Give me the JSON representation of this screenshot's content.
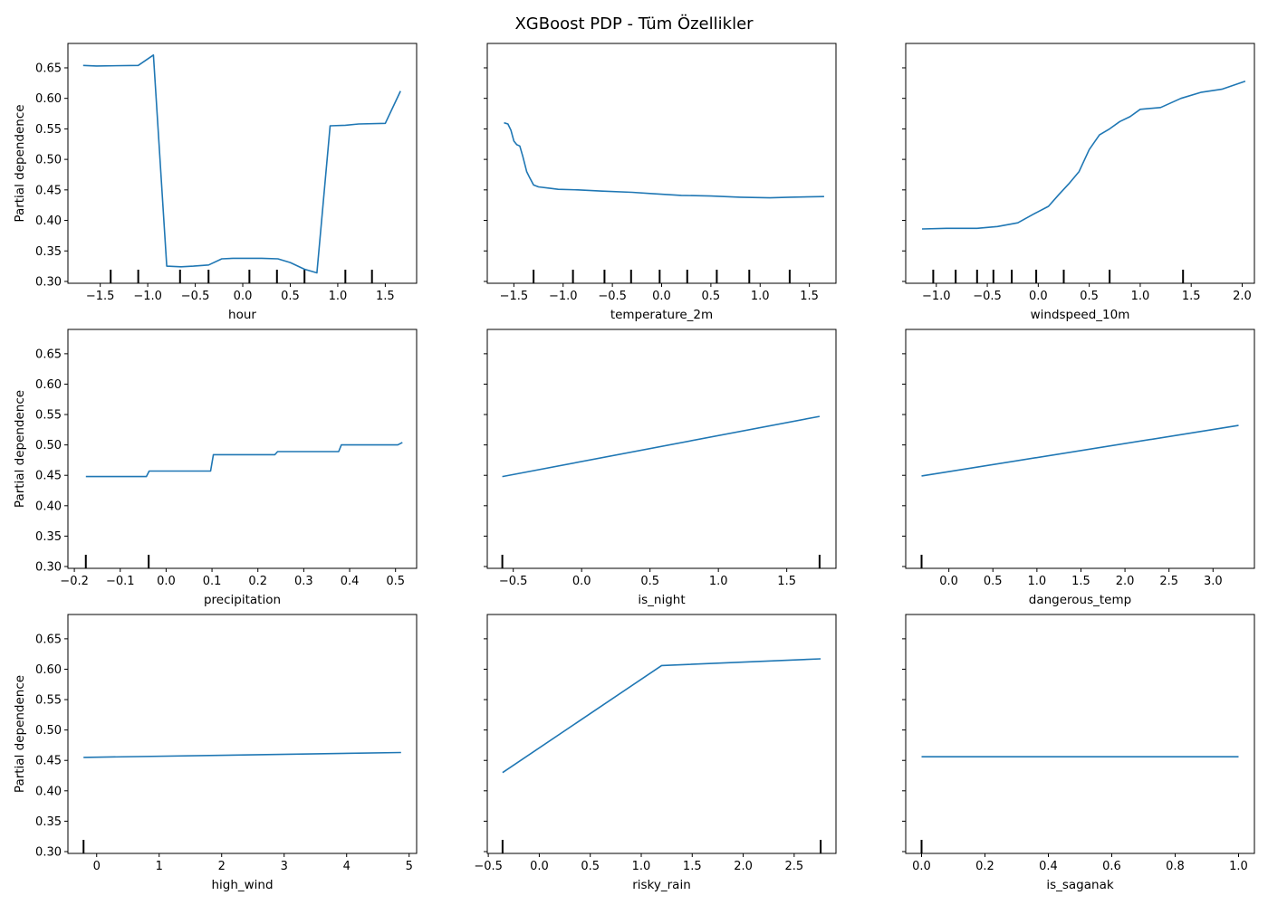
{
  "figure": {
    "title": "XGBoost PDP - Tüm Özellikler",
    "line_color": "#1f77b4",
    "ylabel": "Partial dependence"
  },
  "chart_data": [
    {
      "type": "line",
      "xlabel": "hour",
      "ylabel": "Partial dependence",
      "xlim": [
        -1.84,
        1.83
      ],
      "ylim": [
        0.297,
        0.69
      ],
      "xticks": [
        -1.5,
        -1.0,
        -0.5,
        0.0,
        0.5,
        1.0,
        1.5
      ],
      "xtick_labels": [
        "−1.5",
        "−1.0",
        "−0.5",
        "0.0",
        "0.5",
        "1.0",
        "1.5"
      ],
      "yticks": [
        0.3,
        0.35,
        0.4,
        0.45,
        0.5,
        0.55,
        0.6,
        0.65
      ],
      "ytick_labels": [
        "0.30",
        "0.35",
        "0.40",
        "0.45",
        "0.50",
        "0.55",
        "0.60",
        "0.65"
      ],
      "show_yticklabels": true,
      "x": [
        -1.68,
        -1.54,
        -1.1,
        -0.94,
        -0.8,
        -0.65,
        -0.52,
        -0.36,
        -0.22,
        -0.1,
        0.05,
        0.2,
        0.37,
        0.5,
        0.65,
        0.78,
        0.92,
        1.08,
        1.22,
        1.5,
        1.66
      ],
      "y": [
        0.654,
        0.653,
        0.654,
        0.671,
        0.325,
        0.324,
        0.325,
        0.327,
        0.337,
        0.338,
        0.338,
        0.338,
        0.337,
        0.331,
        0.32,
        0.314,
        0.555,
        0.556,
        0.558,
        0.559,
        0.612
      ],
      "deciles": [
        -1.39,
        -1.1,
        -0.66,
        -0.36,
        0.07,
        0.36,
        0.65,
        1.08,
        1.36
      ]
    },
    {
      "type": "line",
      "xlabel": "temperature_2m",
      "ylabel": "",
      "xlim": [
        -1.77,
        1.77
      ],
      "ylim": [
        0.297,
        0.69
      ],
      "xticks": [
        -1.5,
        -1.0,
        -0.5,
        0.0,
        0.5,
        1.0,
        1.5
      ],
      "xtick_labels": [
        "−1.5",
        "−1.0",
        "−0.5",
        "0.0",
        "0.5",
        "1.0",
        "1.5"
      ],
      "yticks": [
        0.3,
        0.35,
        0.4,
        0.45,
        0.5,
        0.55,
        0.6,
        0.65
      ],
      "ytick_labels": [
        "0.30",
        "0.35",
        "0.40",
        "0.45",
        "0.50",
        "0.55",
        "0.60",
        "0.65"
      ],
      "show_yticklabels": false,
      "x": [
        -1.6,
        -1.56,
        -1.53,
        -1.5,
        -1.47,
        -1.44,
        -1.41,
        -1.37,
        -1.34,
        -1.3,
        -1.25,
        -1.15,
        -1.05,
        -0.85,
        -0.6,
        -0.3,
        -0.1,
        0.2,
        0.5,
        0.8,
        1.1,
        1.3,
        1.65
      ],
      "y": [
        0.56,
        0.558,
        0.548,
        0.53,
        0.524,
        0.522,
        0.505,
        0.48,
        0.47,
        0.458,
        0.455,
        0.453,
        0.451,
        0.45,
        0.448,
        0.446,
        0.444,
        0.441,
        0.44,
        0.438,
        0.437,
        0.438,
        0.439
      ],
      "deciles": [
        -1.3,
        -0.9,
        -0.58,
        -0.31,
        -0.02,
        0.26,
        0.56,
        0.89,
        1.3
      ]
    },
    {
      "type": "line",
      "xlabel": "windspeed_10m",
      "ylabel": "",
      "xlim": [
        -1.3,
        2.12
      ],
      "ylim": [
        0.297,
        0.69
      ],
      "xticks": [
        -1.0,
        -0.5,
        0.0,
        0.5,
        1.0,
        1.5,
        2.0
      ],
      "xtick_labels": [
        "−1.0",
        "−0.5",
        "0.0",
        "0.5",
        "1.0",
        "1.5",
        "2.0"
      ],
      "yticks": [
        0.3,
        0.35,
        0.4,
        0.45,
        0.5,
        0.55,
        0.6,
        0.65
      ],
      "ytick_labels": [
        "0.30",
        "0.35",
        "0.40",
        "0.45",
        "0.50",
        "0.55",
        "0.60",
        "0.65"
      ],
      "show_yticklabels": false,
      "x": [
        -1.14,
        -0.9,
        -0.6,
        -0.4,
        -0.2,
        -0.05,
        0.1,
        0.2,
        0.3,
        0.4,
        0.5,
        0.6,
        0.7,
        0.8,
        0.9,
        1.0,
        1.2,
        1.4,
        1.6,
        1.8,
        2.03
      ],
      "y": [
        0.386,
        0.387,
        0.387,
        0.39,
        0.396,
        0.41,
        0.423,
        0.442,
        0.46,
        0.48,
        0.516,
        0.54,
        0.55,
        0.562,
        0.57,
        0.582,
        0.585,
        0.6,
        0.61,
        0.615,
        0.628
      ],
      "deciles": [
        -1.03,
        -0.81,
        -0.6,
        -0.44,
        -0.26,
        -0.02,
        0.25,
        0.7,
        1.42
      ]
    },
    {
      "type": "line",
      "xlabel": "precipitation",
      "ylabel": "Partial dependence",
      "xlim": [
        -0.214,
        0.546
      ],
      "ylim": [
        0.297,
        0.69
      ],
      "xticks": [
        -0.2,
        -0.1,
        0.0,
        0.1,
        0.2,
        0.3,
        0.4,
        0.5
      ],
      "xtick_labels": [
        "−0.2",
        "−0.1",
        "0.0",
        "0.1",
        "0.2",
        "0.3",
        "0.4",
        "0.5"
      ],
      "yticks": [
        0.3,
        0.35,
        0.4,
        0.45,
        0.5,
        0.55,
        0.6,
        0.65
      ],
      "ytick_labels": [
        "0.30",
        "0.35",
        "0.40",
        "0.45",
        "0.50",
        "0.55",
        "0.60",
        "0.65"
      ],
      "show_yticklabels": true,
      "x": [
        -0.175,
        -0.043,
        -0.037,
        0.097,
        0.103,
        0.237,
        0.243,
        0.376,
        0.382,
        0.505,
        0.515
      ],
      "y": [
        0.448,
        0.448,
        0.457,
        0.457,
        0.484,
        0.484,
        0.489,
        0.489,
        0.5,
        0.5,
        0.504
      ],
      "deciles": [
        -0.175,
        -0.038
      ]
    },
    {
      "type": "line",
      "xlabel": "is_night",
      "ylabel": "",
      "xlim": [
        -0.69,
        1.86
      ],
      "ylim": [
        0.297,
        0.69
      ],
      "xticks": [
        -0.5,
        0.0,
        0.5,
        1.0,
        1.5
      ],
      "xtick_labels": [
        "−0.5",
        "0.0",
        "0.5",
        "1.0",
        "1.5"
      ],
      "yticks": [
        0.3,
        0.35,
        0.4,
        0.45,
        0.5,
        0.55,
        0.6,
        0.65
      ],
      "ytick_labels": [
        "0.30",
        "0.35",
        "0.40",
        "0.45",
        "0.50",
        "0.55",
        "0.60",
        "0.65"
      ],
      "show_yticklabels": false,
      "x": [
        -0.58,
        1.74
      ],
      "y": [
        0.448,
        0.547
      ],
      "deciles": [
        -0.58,
        1.74
      ]
    },
    {
      "type": "line",
      "xlabel": "dangerous_temp",
      "ylabel": "",
      "xlim": [
        -0.49,
        3.47
      ],
      "ylim": [
        0.297,
        0.69
      ],
      "xticks": [
        0.0,
        0.5,
        1.0,
        1.5,
        2.0,
        2.5,
        3.0
      ],
      "xtick_labels": [
        "0.0",
        "0.5",
        "1.0",
        "1.5",
        "2.0",
        "2.5",
        "3.0"
      ],
      "yticks": [
        0.3,
        0.35,
        0.4,
        0.45,
        0.5,
        0.55,
        0.6,
        0.65
      ],
      "ytick_labels": [
        "0.30",
        "0.35",
        "0.40",
        "0.45",
        "0.50",
        "0.55",
        "0.60",
        "0.65"
      ],
      "show_yticklabels": false,
      "x": [
        -0.31,
        3.29
      ],
      "y": [
        0.449,
        0.532
      ],
      "deciles": [
        -0.31
      ]
    },
    {
      "type": "line",
      "xlabel": "high_wind",
      "ylabel": "Partial dependence",
      "xlim": [
        -0.46,
        5.12
      ],
      "ylim": [
        0.297,
        0.69
      ],
      "xticks": [
        0,
        1,
        2,
        3,
        4,
        5
      ],
      "xtick_labels": [
        "0",
        "1",
        "2",
        "3",
        "4",
        "5"
      ],
      "yticks": [
        0.3,
        0.35,
        0.4,
        0.45,
        0.5,
        0.55,
        0.6,
        0.65
      ],
      "ytick_labels": [
        "0.30",
        "0.35",
        "0.40",
        "0.45",
        "0.50",
        "0.55",
        "0.60",
        "0.65"
      ],
      "show_yticklabels": true,
      "x": [
        -0.21,
        4.87
      ],
      "y": [
        0.455,
        0.463
      ],
      "deciles": [
        -0.21
      ]
    },
    {
      "type": "line",
      "xlabel": "risky_rain",
      "ylabel": "",
      "xlim": [
        -0.51,
        2.91
      ],
      "ylim": [
        0.297,
        0.69
      ],
      "xticks": [
        -0.5,
        0.0,
        0.5,
        1.0,
        1.5,
        2.0,
        2.5
      ],
      "xtick_labels": [
        "−0.5",
        "0.0",
        "0.5",
        "1.0",
        "1.5",
        "2.0",
        "2.5"
      ],
      "yticks": [
        0.3,
        0.35,
        0.4,
        0.45,
        0.5,
        0.55,
        0.6,
        0.65
      ],
      "ytick_labels": [
        "0.30",
        "0.35",
        "0.40",
        "0.45",
        "0.50",
        "0.55",
        "0.60",
        "0.65"
      ],
      "show_yticklabels": false,
      "x": [
        -0.36,
        1.2,
        2.76
      ],
      "y": [
        0.43,
        0.606,
        0.617
      ],
      "deciles": [
        -0.36,
        2.76
      ]
    },
    {
      "type": "line",
      "xlabel": "is_saganak",
      "ylabel": "",
      "xlim": [
        -0.05,
        1.05
      ],
      "ylim": [
        0.297,
        0.69
      ],
      "xticks": [
        0.0,
        0.2,
        0.4,
        0.6,
        0.8,
        1.0
      ],
      "xtick_labels": [
        "0.0",
        "0.2",
        "0.4",
        "0.6",
        "0.8",
        "1.0"
      ],
      "yticks": [
        0.3,
        0.35,
        0.4,
        0.45,
        0.5,
        0.55,
        0.6,
        0.65
      ],
      "ytick_labels": [
        "0.30",
        "0.35",
        "0.40",
        "0.45",
        "0.50",
        "0.55",
        "0.60",
        "0.65"
      ],
      "show_yticklabels": false,
      "x": [
        0.0,
        1.0
      ],
      "y": [
        0.456,
        0.456
      ],
      "deciles": [
        0.0
      ]
    }
  ]
}
